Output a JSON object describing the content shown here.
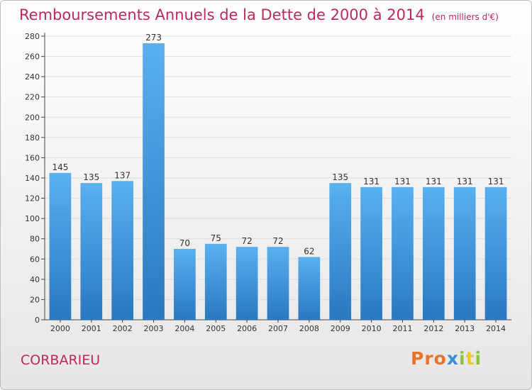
{
  "chart_data": {
    "type": "bar",
    "title": "Remboursements Annuels de la Dette de 2000 à 2014",
    "subtitle": "(en milliers d'€)",
    "categories": [
      "2000",
      "2001",
      "2002",
      "2003",
      "2004",
      "2005",
      "2006",
      "2007",
      "2008",
      "2009",
      "2010",
      "2011",
      "2012",
      "2013",
      "2014"
    ],
    "values": [
      145,
      135,
      137,
      273,
      70,
      75,
      72,
      72,
      62,
      135,
      131,
      131,
      131,
      131,
      131
    ],
    "ylim": [
      0,
      280
    ],
    "yticks": [
      0,
      20,
      40,
      60,
      80,
      100,
      120,
      140,
      160,
      180,
      200,
      220,
      240,
      260,
      280
    ],
    "grid": true,
    "bar_color": "#3a8fd8"
  },
  "footer": {
    "place": "CORBARIEU",
    "logo": [
      "P",
      "r",
      "o",
      "x",
      "i",
      "t",
      "i"
    ],
    "logo_colors": [
      "#e8742c",
      "#e8742c",
      "#e8742c",
      "#3a8fd8",
      "#8cc43c",
      "#e8c82c",
      "#8cc43c"
    ]
  },
  "colors": {
    "title": "#c0285a",
    "grid": "#dddddd",
    "axis": "#444444"
  }
}
